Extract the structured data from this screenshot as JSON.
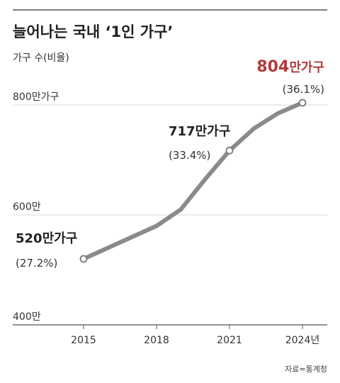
{
  "chart_data": {
    "type": "line",
    "title": "늘어나는 국내 ‘1인 가구’",
    "subtitle": "가구 수(비율)",
    "x": [
      2015,
      2016,
      2017,
      2018,
      2019,
      2020,
      2021,
      2022,
      2023,
      2024
    ],
    "series": [
      {
        "values": [
          520,
          540,
          560,
          580,
          610,
          665,
          717,
          757,
          785,
          804
        ],
        "color": "#8a8a8a"
      }
    ],
    "x_ticks": [
      "2015",
      "2018",
      "2021",
      "2024년"
    ],
    "x_tick_values": [
      2015,
      2018,
      2021,
      2024
    ],
    "y_ticks": [
      "800만가구",
      "600만",
      "400만"
    ],
    "y_tick_values": [
      800,
      600,
      400
    ],
    "xlim": [
      2015,
      2024
    ],
    "ylim": [
      400,
      800
    ],
    "grid": true,
    "annotations": [
      {
        "x": 2015,
        "y": 520,
        "label": "520만가구",
        "sub": "(27.2%)",
        "highlight": false
      },
      {
        "x": 2021,
        "y": 717,
        "label": "717만가구",
        "sub": "(33.4%)",
        "highlight": false
      },
      {
        "x": 2024,
        "y": 804,
        "label_num": "804",
        "label_unit": "만가구",
        "sub": "(36.1%)",
        "highlight": true,
        "highlight_color": "#b33a3a"
      }
    ],
    "source": "자료=통계청"
  }
}
